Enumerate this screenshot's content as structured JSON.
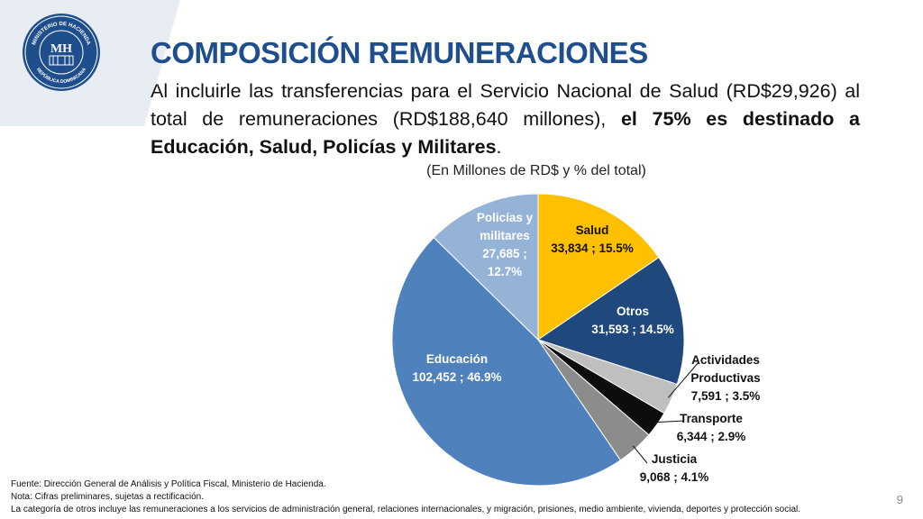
{
  "header": {
    "title": "COMPOSICIÓN REMUNERACIONES",
    "intro_plain": "Al incluirle las transferencias para el Servicio Nacional de Salud (RD$29,926) al total de remuneraciones (RD$188,640 millones), ",
    "intro_bold": "el 75% es destinado a Educación, Salud, Policías y Militares",
    "intro_end": "."
  },
  "logo": {
    "top_text": "MINISTERIO DE HACIENDA",
    "bottom_text": "REPÚBLICA DOMINICANA",
    "monogram": "MH"
  },
  "chart_data": {
    "type": "pie",
    "subtitle": "(En Millones de RD$ y % del total)",
    "start": "12 o'clock, clockwise",
    "slices": [
      {
        "name": "Salud",
        "value": 33834,
        "value_label": "33,834 ; 15.5%",
        "percent": 15.5,
        "color": "#ffc000"
      },
      {
        "name": "Otros",
        "value": 31593,
        "value_label": "31,593 ; 14.5%",
        "percent": 14.5,
        "color": "#1f497d"
      },
      {
        "name": "Actividades Productivas",
        "value": 7591,
        "value_label": "7,591 ; 3.5%",
        "percent": 3.5,
        "color": "#bfbfbf"
      },
      {
        "name": "Transporte",
        "value": 6344,
        "value_label": "6,344 ; 2.9%",
        "percent": 2.9,
        "color": "#0d0d0d"
      },
      {
        "name": "Justicia",
        "value": 9068,
        "value_label": "9,068 ; 4.1%",
        "percent": 4.1,
        "color": "#8c8c8c"
      },
      {
        "name": "Educación",
        "value": 102452,
        "value_label": "102,452 ; 46.9%",
        "percent": 46.9,
        "color": "#4f81bd"
      },
      {
        "name": "Policías y militares",
        "value": 27685,
        "value_label": "27,685 ; 12.7%",
        "percent": 12.7,
        "color": "#95b3d7"
      }
    ]
  },
  "footer": {
    "source": "Fuente: Dirección General de Análisis y Política Fiscal, Ministerio de Hacienda.",
    "note": "Nota: Cifras preliminares, sujetas a rectificación.",
    "category_note": "La categoría de otros incluye las remuneraciones a los servicios de administración general, relaciones internacionales, y migración, prisiones, medio ambiente, vivienda, deportes y protección social.",
    "page_number": "9"
  }
}
